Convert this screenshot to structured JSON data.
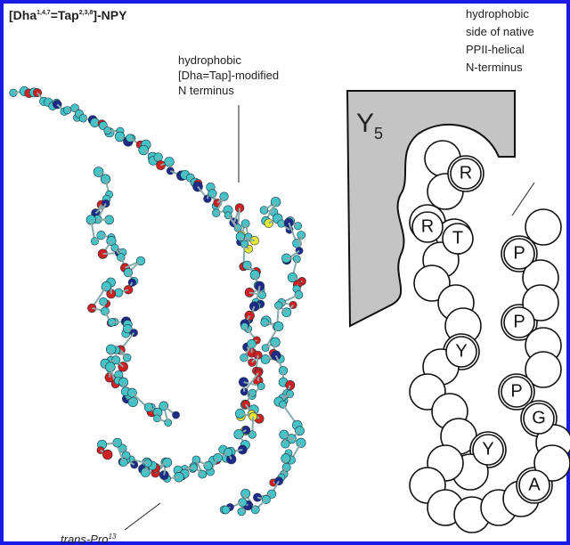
{
  "title": {
    "parts": [
      "[Dha",
      "1,4,7",
      "=Tap",
      "2,3,8",
      "]-NPY"
    ]
  },
  "left_annotation": [
    "hydrophobic",
    "[Dha=Tap]-modified",
    "N terminus"
  ],
  "right_annotation": [
    "hydrophobic",
    "side of native",
    "PPII-helical",
    "N-terminus"
  ],
  "bottom_annotation": {
    "text": "trans-Pro",
    "sup": "13"
  },
  "receptor": {
    "name": "Y",
    "subscript": "5"
  },
  "residues": [
    "R",
    "R",
    "T",
    "Y",
    "Y",
    "P",
    "P",
    "P",
    "G",
    "A"
  ]
}
